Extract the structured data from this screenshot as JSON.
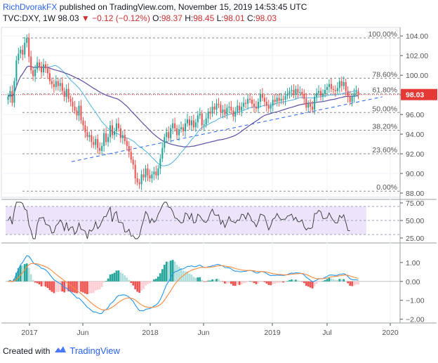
{
  "header": {
    "author": "RichDvorakFX",
    "published": "published on TradingView.com, November 15, 2019 14:53:45 UTC",
    "symbol": "TVC:DXY, 1W",
    "last": "98.03",
    "change_arrow": "▼",
    "change": "−0.12 (−0.12%)",
    "o_label": "O:",
    "o": "98.37",
    "h_label": "H:",
    "h": "98.45",
    "l_label": "L:",
    "l": "98.01",
    "c_label": "C:",
    "c": "98.03"
  },
  "price_label": "98.03",
  "footer": {
    "created": "Created with",
    "brand": "TradingView"
  },
  "colors": {
    "up": "#26a69a",
    "down": "#ef5350",
    "grid": "#f0f3fa",
    "axis": "#555555",
    "ma_slow": "#5b4ea8",
    "ma_fast": "#4fb3e8",
    "rsi": "#333333",
    "rsi_band": "#ede4fb",
    "macd": "#2196f3",
    "signal": "#ff8a3d",
    "fib": "#888888",
    "price_line": "#e53935",
    "trend": "#2962ff"
  },
  "chart_data": [
    {
      "type": "candlestick",
      "series": [
        {
          "name": "TVC:DXY, 1W"
        }
      ],
      "x_ticks": [
        "2017",
        "Jun",
        "2018",
        "Jun",
        "2019",
        "Jul",
        "2020"
      ],
      "y_ticks": [
        "104.00",
        "102.00",
        "100.00",
        "98.00",
        "96.00",
        "94.00",
        "92.00",
        "90.00",
        "88.00"
      ],
      "ylim": [
        87.5,
        104.8
      ],
      "fib_levels": [
        {
          "label": "100.00%",
          "value": 103.8
        },
        {
          "label": "78.60%",
          "value": 99.7
        },
        {
          "label": "61.80%",
          "value": 98.1
        },
        {
          "label": "50.00%",
          "value": 96.2
        },
        {
          "label": "38.20%",
          "value": 94.4
        },
        {
          "label": "23.60%",
          "value": 92.0
        },
        {
          "label": "0.00%",
          "value": 88.2
        }
      ],
      "last_price": 98.03,
      "trendline": [
        {
          "x": 0.167,
          "y": 91.2
        },
        {
          "x": 0.955,
          "y": 97.8
        }
      ],
      "closes": [
        97.8,
        98.4,
        97.2,
        99.4,
        101.5,
        102.2,
        102.6,
        102.1,
        103.3,
        103.8,
        101.9,
        100.5,
        99.9,
        100.6,
        101.3,
        100.9,
        100.3,
        101.1,
        100.7,
        100.2,
        99.4,
        99.1,
        98.8,
        99.4,
        98.9,
        99.2,
        98.4,
        97.8,
        98.6,
        97.6,
        97.3,
        96.8,
        96.4,
        95.9,
        96.9,
        95.4,
        94.9,
        94.2,
        93.7,
        93.9,
        93.2,
        92.9,
        93.5,
        92.6,
        92.3,
        92.8,
        94.1,
        93.2,
        93.7,
        94.9,
        93.9,
        94.3,
        95.1,
        94.6,
        93.6,
        93.9,
        93.3,
        92.8,
        92.2,
        91.4,
        90.9,
        89.5,
        89.1,
        88.9,
        89.9,
        89.6,
        90.5,
        89.8,
        89.5,
        89.9,
        90.2,
        89.8,
        90.5,
        91.5,
        92.6,
        93.7,
        94.2,
        93.6,
        94.6,
        95.1,
        94.6,
        93.9,
        94.5,
        94.7,
        94.3,
        95.1,
        95.5,
        94.9,
        95.4,
        94.7,
        95.2,
        95.9,
        96.1,
        94.9,
        95.0,
        95.6,
        96.3,
        96.1,
        96.8,
        96.5,
        97.1,
        97.0,
        96.2,
        96.5,
        96.0,
        96.7,
        96.8,
        96.4,
        95.8,
        96.3,
        96.9,
        96.4,
        96.8,
        97.2,
        97.1,
        97.6,
        97.5,
        97.1,
        96.8,
        96.6,
        97.3,
        98.1,
        97.7,
        97.3,
        96.9,
        96.6,
        96.9,
        97.5,
        97.3,
        97.7,
        97.4,
        97.6,
        97.5,
        97.9,
        98.1,
        98.4,
        98.5,
        98.0,
        98.6,
        98.2,
        98.3,
        98.1,
        97.6,
        96.7,
        97.1,
        96.8,
        96.5,
        97.8,
        98.2,
        98.4,
        97.9,
        98.1,
        98.5,
        98.8,
        99.1,
        98.6,
        98.5,
        98.4,
        98.7,
        99.4,
        98.9,
        99.3,
        98.4,
        97.8,
        97.3,
        97.8,
        98.2,
        98.35,
        98.03
      ]
    },
    {
      "type": "line",
      "series": [
        {
          "name": "RSI"
        }
      ],
      "y_ticks": [
        "75.00",
        "50.00",
        "25.00"
      ],
      "ylim": [
        20,
        80
      ],
      "band": [
        30,
        70
      ]
    },
    {
      "type": "histogram",
      "series": [
        {
          "name": "MACD"
        },
        {
          "name": "Signal"
        },
        {
          "name": "Histogram"
        }
      ],
      "y_ticks": [
        "1.00",
        "0.00",
        "−1.00",
        "−2.00"
      ],
      "ylim": [
        -2.2,
        2.0
      ]
    }
  ]
}
